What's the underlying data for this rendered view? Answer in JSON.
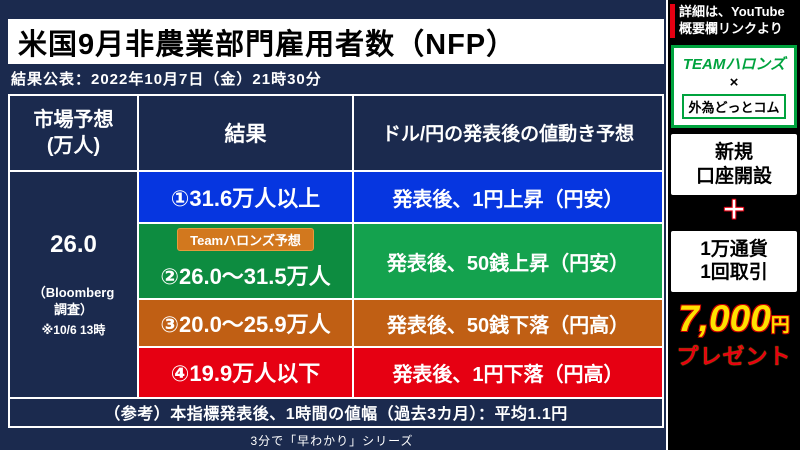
{
  "colors": {
    "background_navy": "#1b2a4e",
    "row_blue": "#0636e0",
    "row_green": "#14a24e",
    "row_orange": "#c05f14",
    "row_red": "#e60012",
    "badge_orange": "#d2781e",
    "brand_green": "#00a33e",
    "prize_yellow": "#ffe100",
    "accent_red": "#e60012"
  },
  "main": {
    "subtitle": "結果公表：2022年10月7日（金）21時30分",
    "caption": "3分で「早わかり」シリーズ"
  },
  "chart_data": {
    "type": "table",
    "title": "米国9月非農業部門雇用者数（NFP）",
    "header": {
      "forecast": "市場予想\n(万人)",
      "result": "結果",
      "movement": "ドル/円の発表後の値動き予想"
    },
    "forecast": {
      "value": "26.0",
      "source": "（Bloomberg\n調査）",
      "note": "※10/6 13時"
    },
    "rows": [
      {
        "result": "①31.6万人以上",
        "movement": "発表後、1円上昇（円安）",
        "color": "#0636e0"
      },
      {
        "badge": "Teamハロンズ予想",
        "result": "②26.0〜31.5万人",
        "movement": "発表後、50銭上昇（円安）",
        "color": "#14a24e"
      },
      {
        "result": "③20.0〜25.9万人",
        "movement": "発表後、50銭下落（円高）",
        "color": "#c05f14"
      },
      {
        "result": "④19.9万人以下",
        "movement": "発表後、1円下落（円高）",
        "color": "#e60012"
      }
    ],
    "footer_note": "（参考）本指標発表後、1時間の値幅（過去3カ月）：平均1.1円"
  },
  "sidebar": {
    "note_line1": "詳細は、YouTube",
    "note_line2": "概要欄リンクより",
    "brand": {
      "team": "TEAMハロンズ",
      "cross": "×",
      "partner": "外為どっとコム"
    },
    "offer_account_line1": "新規",
    "offer_account_line2": "口座開設",
    "plus": "＋",
    "offer_trade_line1": "1万通貨",
    "offer_trade_line2": "1回取引",
    "prize": {
      "amount": "7,000",
      "unit": "円",
      "label": "プレゼント"
    }
  }
}
